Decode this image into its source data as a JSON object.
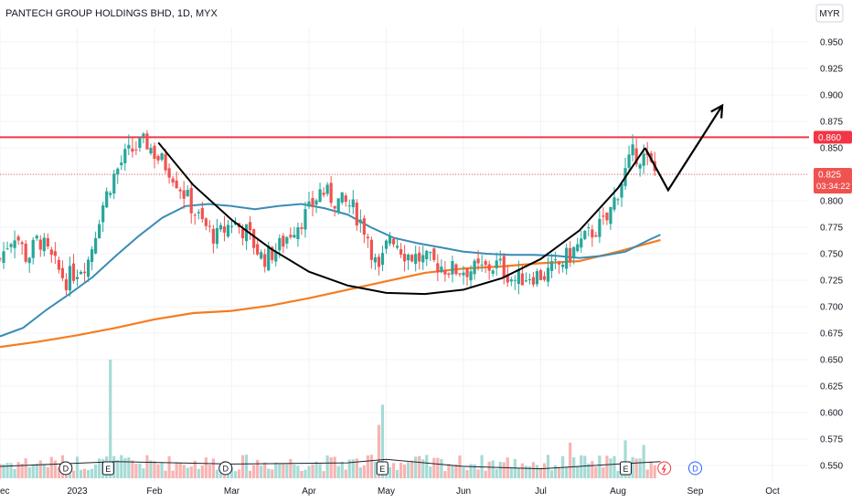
{
  "header": {
    "title": "PANTECH GROUP HOLDINGS BHD, 1D, MYX",
    "currency_button": "MYR"
  },
  "colors": {
    "up": "#26a69a",
    "down": "#ef5350",
    "resistance": "#f23645",
    "ma_short": "#3a8bb5",
    "ma_long": "#f57c1f",
    "drawing": "#000000",
    "grid": "#f0f3fa",
    "axis_text": "#131722"
  },
  "axis": {
    "y_ticks": [
      "0.950",
      "0.925",
      "0.900",
      "0.875",
      "0.850",
      "0.825",
      "0.800",
      "0.775",
      "0.750",
      "0.725",
      "0.700",
      "0.675",
      "0.650",
      "0.625",
      "0.600",
      "0.575",
      "0.550"
    ],
    "x_labels": [
      {
        "label": "ec",
        "x": 0
      },
      {
        "label": "2023",
        "x": 1
      },
      {
        "label": "Feb",
        "x": 2
      },
      {
        "label": "Mar",
        "x": 3
      },
      {
        "label": "Apr",
        "x": 4
      },
      {
        "label": "May",
        "x": 5
      },
      {
        "label": "Jun",
        "x": 6
      },
      {
        "label": "Jul",
        "x": 7
      },
      {
        "label": "Aug",
        "x": 8
      },
      {
        "label": "Sep",
        "x": 9
      },
      {
        "label": "Oct",
        "x": 10
      }
    ]
  },
  "price_labels": {
    "resistance": "0.860",
    "last": "0.825",
    "countdown": "03:34:22"
  },
  "events": [
    {
      "type": "D",
      "x": 0.85
    },
    {
      "type": "E",
      "x": 1.4
    },
    {
      "type": "D",
      "x": 2.92
    },
    {
      "type": "E",
      "x": 4.95
    },
    {
      "type": "E",
      "x": 8.1
    },
    {
      "type": "bolt",
      "x": 8.6
    },
    {
      "type": "D",
      "x": 9.0
    }
  ],
  "chart_data": {
    "type": "candlestick",
    "title": "PANTECH GROUP HOLDINGS BHD, 1D, MYX",
    "ylim": [
      0.54,
      0.96
    ],
    "x_unit": "months from Dec 2022",
    "resistance_level": 0.86,
    "last_price": 0.825,
    "price_anchors": [
      [
        0.0,
        0.745
      ],
      [
        0.1,
        0.76
      ],
      [
        0.2,
        0.77
      ],
      [
        0.35,
        0.745
      ],
      [
        0.5,
        0.765
      ],
      [
        0.7,
        0.74
      ],
      [
        0.85,
        0.725
      ],
      [
        1.0,
        0.735
      ],
      [
        1.15,
        0.745
      ],
      [
        1.3,
        0.79
      ],
      [
        1.45,
        0.82
      ],
      [
        1.6,
        0.84
      ],
      [
        1.75,
        0.85
      ],
      [
        1.9,
        0.855
      ],
      [
        2.05,
        0.84
      ],
      [
        2.2,
        0.83
      ],
      [
        2.4,
        0.805
      ],
      [
        2.6,
        0.78
      ],
      [
        2.8,
        0.765
      ],
      [
        3.0,
        0.78
      ],
      [
        3.2,
        0.77
      ],
      [
        3.4,
        0.745
      ],
      [
        3.6,
        0.755
      ],
      [
        3.8,
        0.775
      ],
      [
        4.0,
        0.79
      ],
      [
        4.15,
        0.81
      ],
      [
        4.35,
        0.8
      ],
      [
        4.55,
        0.795
      ],
      [
        4.75,
        0.77
      ],
      [
        4.9,
        0.73
      ],
      [
        5.05,
        0.77
      ],
      [
        5.25,
        0.75
      ],
      [
        5.45,
        0.745
      ],
      [
        5.65,
        0.74
      ],
      [
        5.85,
        0.735
      ],
      [
        6.05,
        0.735
      ],
      [
        6.25,
        0.735
      ],
      [
        6.45,
        0.74
      ],
      [
        6.65,
        0.725
      ],
      [
        6.85,
        0.73
      ],
      [
        7.05,
        0.73
      ],
      [
        7.25,
        0.74
      ],
      [
        7.45,
        0.755
      ],
      [
        7.65,
        0.77
      ],
      [
        7.85,
        0.78
      ],
      [
        8.05,
        0.82
      ],
      [
        8.2,
        0.845
      ],
      [
        8.35,
        0.84
      ],
      [
        8.5,
        0.825
      ]
    ],
    "ma_short": {
      "name": "",
      "points": [
        [
          0.0,
          0.672
        ],
        [
          0.3,
          0.68
        ],
        [
          0.6,
          0.697
        ],
        [
          0.9,
          0.712
        ],
        [
          1.2,
          0.728
        ],
        [
          1.5,
          0.748
        ],
        [
          1.8,
          0.767
        ],
        [
          2.1,
          0.784
        ],
        [
          2.4,
          0.795
        ],
        [
          2.7,
          0.797
        ],
        [
          3.0,
          0.795
        ],
        [
          3.3,
          0.792
        ],
        [
          3.6,
          0.795
        ],
        [
          3.9,
          0.797
        ],
        [
          4.2,
          0.793
        ],
        [
          4.5,
          0.787
        ],
        [
          4.8,
          0.775
        ],
        [
          5.1,
          0.765
        ],
        [
          5.4,
          0.76
        ],
        [
          5.7,
          0.756
        ],
        [
          6.0,
          0.752
        ],
        [
          6.3,
          0.75
        ],
        [
          6.6,
          0.749
        ],
        [
          6.9,
          0.749
        ],
        [
          7.2,
          0.748
        ],
        [
          7.5,
          0.746
        ],
        [
          7.8,
          0.748
        ],
        [
          8.1,
          0.752
        ],
        [
          8.4,
          0.763
        ],
        [
          8.55,
          0.768
        ]
      ]
    },
    "ma_long": {
      "name": "",
      "points": [
        [
          0.0,
          0.662
        ],
        [
          0.5,
          0.667
        ],
        [
          1.0,
          0.673
        ],
        [
          1.5,
          0.68
        ],
        [
          2.0,
          0.688
        ],
        [
          2.5,
          0.694
        ],
        [
          3.0,
          0.696
        ],
        [
          3.5,
          0.701
        ],
        [
          4.0,
          0.708
        ],
        [
          4.5,
          0.716
        ],
        [
          5.0,
          0.724
        ],
        [
          5.5,
          0.732
        ],
        [
          6.0,
          0.736
        ],
        [
          6.5,
          0.738
        ],
        [
          7.0,
          0.741
        ],
        [
          7.5,
          0.743
        ],
        [
          8.0,
          0.752
        ],
        [
          8.55,
          0.763
        ]
      ]
    },
    "cup_arc": [
      [
        2.05,
        0.855
      ],
      [
        2.5,
        0.815
      ],
      [
        3.0,
        0.782
      ],
      [
        3.5,
        0.755
      ],
      [
        4.0,
        0.733
      ],
      [
        4.5,
        0.72
      ],
      [
        5.0,
        0.713
      ],
      [
        5.5,
        0.712
      ],
      [
        6.0,
        0.716
      ],
      [
        6.5,
        0.727
      ],
      [
        7.0,
        0.745
      ],
      [
        7.5,
        0.772
      ],
      [
        8.0,
        0.812
      ],
      [
        8.35,
        0.85
      ]
    ],
    "projection_path": [
      [
        8.35,
        0.85
      ],
      [
        8.65,
        0.81
      ],
      [
        9.35,
        0.89
      ]
    ],
    "volume": {
      "max": 1.0,
      "spikes": [
        [
          1.43,
          1.0
        ],
        [
          4.95,
          0.62
        ],
        [
          4.9,
          0.45
        ],
        [
          7.4,
          0.3
        ],
        [
          8.1,
          0.32
        ],
        [
          8.35,
          0.28
        ]
      ],
      "ma_line": [
        [
          0.0,
          0.1
        ],
        [
          1.5,
          0.14
        ],
        [
          3.0,
          0.12
        ],
        [
          4.5,
          0.13
        ],
        [
          5.0,
          0.16
        ],
        [
          6.0,
          0.1
        ],
        [
          7.0,
          0.08
        ],
        [
          8.0,
          0.12
        ],
        [
          8.55,
          0.14
        ]
      ]
    }
  }
}
